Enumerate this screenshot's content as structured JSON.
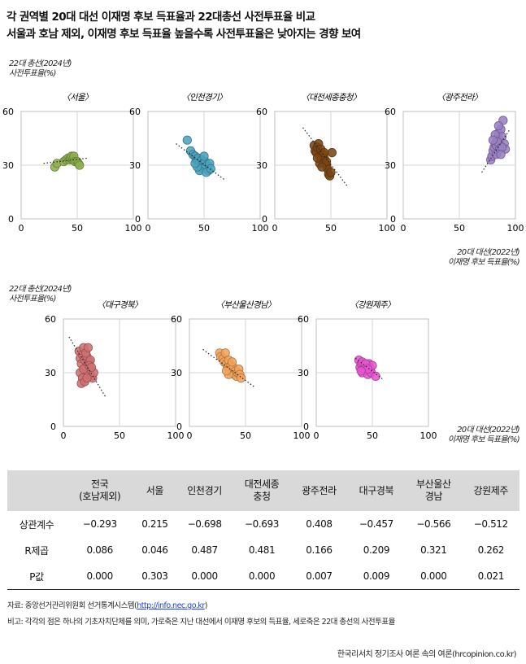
{
  "header": {
    "title_line1": "각 권역별 20대 대선 이재명 후보 득표율과 22대총선 사전투표율 비교",
    "title_line2": "서울과 호남 제외, 이재명 후보 득표율 높을수록 사전투표율은 낮아지는 경향 보여"
  },
  "axis_labels": {
    "y_line1": "22대 총선(2024년)",
    "y_line2": "사전투표율(%)",
    "x_line1": "20대 대선(2022년)",
    "x_line2": "이재명 후보 득표율(%)"
  },
  "colors": {
    "서울": "#8db04d",
    "인천경기": "#4ba3bf",
    "대전세종충청": "#7a4515",
    "광주전라": "#9a7fc4",
    "대구경북": "#cf6f72",
    "부산울산경남": "#f2a35a",
    "강원제주": "#e655cf"
  },
  "chart_data": [
    {
      "type": "scatter",
      "title": "〈서울〉",
      "region": "서울",
      "xlim": [
        0,
        100
      ],
      "ylim": [
        0,
        60
      ],
      "xticks": [
        0,
        50,
        100
      ],
      "yticks": [
        0,
        30,
        60
      ],
      "trend": {
        "x1": 20,
        "y1": 31,
        "x2": 60,
        "y2": 34
      },
      "points": [
        [
          30,
          29
        ],
        [
          32,
          31
        ],
        [
          38,
          32
        ],
        [
          40,
          33
        ],
        [
          42,
          34
        ],
        [
          43,
          33
        ],
        [
          44,
          34
        ],
        [
          45,
          35
        ],
        [
          46,
          33
        ],
        [
          47,
          35
        ],
        [
          48,
          32
        ],
        [
          50,
          32
        ],
        [
          51,
          31
        ],
        [
          52,
          30
        ]
      ]
    },
    {
      "type": "scatter",
      "title": "〈인천경기〉",
      "region": "인천경기",
      "xlim": [
        0,
        100
      ],
      "ylim": [
        0,
        60
      ],
      "xticks": [
        0,
        50,
        100
      ],
      "yticks": [
        0,
        30,
        60
      ],
      "trend": {
        "x1": 25,
        "y1": 42,
        "x2": 68,
        "y2": 22
      },
      "points": [
        [
          35,
          44
        ],
        [
          38,
          38
        ],
        [
          40,
          36
        ],
        [
          42,
          35
        ],
        [
          43,
          33
        ],
        [
          44,
          33
        ],
        [
          45,
          34
        ],
        [
          46,
          31
        ],
        [
          47,
          30
        ],
        [
          48,
          33
        ],
        [
          49,
          31
        ],
        [
          50,
          28
        ],
        [
          51,
          32
        ],
        [
          52,
          29
        ],
        [
          53,
          30
        ],
        [
          54,
          27
        ],
        [
          55,
          31
        ],
        [
          50,
          35
        ],
        [
          48,
          28
        ],
        [
          46,
          27
        ],
        [
          52,
          26
        ],
        [
          56,
          28
        ],
        [
          44,
          29
        ],
        [
          42,
          31
        ]
      ]
    },
    {
      "type": "scatter",
      "title": "〈대전세종충청〉",
      "region": "대전세종충청",
      "xlim": [
        0,
        100
      ],
      "ylim": [
        0,
        60
      ],
      "xticks": [
        0,
        50,
        100
      ],
      "yticks": [
        0,
        30,
        60
      ],
      "trend": {
        "x1": 25,
        "y1": 51,
        "x2": 65,
        "y2": 18
      },
      "points": [
        [
          35,
          41
        ],
        [
          36,
          38
        ],
        [
          37,
          37
        ],
        [
          38,
          40
        ],
        [
          39,
          42
        ],
        [
          40,
          35
        ],
        [
          41,
          39
        ],
        [
          42,
          33
        ],
        [
          43,
          36
        ],
        [
          44,
          34
        ],
        [
          45,
          31
        ],
        [
          46,
          30
        ],
        [
          47,
          28
        ],
        [
          48,
          25
        ],
        [
          49,
          24
        ],
        [
          50,
          26
        ],
        [
          51,
          37
        ],
        [
          40,
          31
        ],
        [
          44,
          37
        ],
        [
          46,
          32
        ],
        [
          38,
          34
        ],
        [
          42,
          29
        ]
      ]
    },
    {
      "type": "scatter",
      "title": "〈광주전라〉",
      "region": "광주전라",
      "xlim": [
        0,
        100
      ],
      "ylim": [
        0,
        60
      ],
      "xticks": [
        0,
        50,
        100
      ],
      "yticks": [
        0,
        30,
        60
      ],
      "trend": {
        "x1": 70,
        "y1": 26,
        "x2": 95,
        "y2": 50
      },
      "points": [
        [
          78,
          33
        ],
        [
          79,
          35
        ],
        [
          80,
          38
        ],
        [
          81,
          40
        ],
        [
          82,
          42
        ],
        [
          83,
          41
        ],
        [
          84,
          45
        ],
        [
          85,
          48
        ],
        [
          86,
          44
        ],
        [
          87,
          50
        ],
        [
          88,
          46
        ],
        [
          89,
          55
        ],
        [
          90,
          42
        ],
        [
          91,
          39
        ],
        [
          85,
          52
        ],
        [
          83,
          36
        ],
        [
          82,
          47
        ],
        [
          84,
          43
        ],
        [
          86,
          39
        ],
        [
          88,
          40
        ],
        [
          87,
          36
        ],
        [
          80,
          44
        ]
      ]
    },
    {
      "type": "scatter",
      "title": "〈대구경북〉",
      "region": "대구경북",
      "xlim": [
        0,
        100
      ],
      "ylim": [
        0,
        60
      ],
      "xticks": [
        0,
        50,
        100
      ],
      "yticks": [
        0,
        30,
        60
      ],
      "trend": {
        "x1": 5,
        "y1": 50,
        "x2": 38,
        "y2": 16
      },
      "points": [
        [
          14,
          42
        ],
        [
          15,
          38
        ],
        [
          16,
          35
        ],
        [
          17,
          40
        ],
        [
          18,
          44
        ],
        [
          19,
          37
        ],
        [
          20,
          33
        ],
        [
          21,
          39
        ],
        [
          22,
          30
        ],
        [
          23,
          36
        ],
        [
          24,
          32
        ],
        [
          25,
          28
        ],
        [
          26,
          27
        ],
        [
          27,
          30
        ],
        [
          15,
          30
        ],
        [
          17,
          27
        ],
        [
          18,
          32
        ],
        [
          20,
          41
        ],
        [
          22,
          44
        ],
        [
          24,
          37
        ],
        [
          16,
          24
        ],
        [
          19,
          25
        ],
        [
          21,
          27
        ],
        [
          23,
          34
        ],
        [
          25,
          33
        ]
      ]
    },
    {
      "type": "scatter",
      "title": "〈부산울산경남〉",
      "region": "부산울산경남",
      "xlim": [
        0,
        100
      ],
      "ylim": [
        0,
        60
      ],
      "xticks": [
        0,
        50,
        100
      ],
      "yticks": [
        0,
        30,
        60
      ],
      "trend": {
        "x1": 12,
        "y1": 43,
        "x2": 58,
        "y2": 22
      },
      "points": [
        [
          27,
          41
        ],
        [
          28,
          39
        ],
        [
          30,
          38
        ],
        [
          31,
          36
        ],
        [
          32,
          41
        ],
        [
          33,
          35
        ],
        [
          34,
          33
        ],
        [
          35,
          37
        ],
        [
          36,
          32
        ],
        [
          37,
          34
        ],
        [
          38,
          30
        ],
        [
          39,
          33
        ],
        [
          40,
          29
        ],
        [
          41,
          31
        ],
        [
          42,
          28
        ],
        [
          43,
          30
        ],
        [
          44,
          32
        ],
        [
          45,
          29
        ],
        [
          46,
          27
        ],
        [
          35,
          29
        ],
        [
          33,
          31
        ],
        [
          38,
          36
        ]
      ]
    },
    {
      "type": "scatter",
      "title": "〈강원제주〉",
      "region": "강원제주",
      "xlim": [
        0,
        100
      ],
      "ylim": [
        0,
        60
      ],
      "xticks": [
        0,
        50,
        100
      ],
      "yticks": [
        0,
        30,
        60
      ],
      "trend": {
        "x1": 35,
        "y1": 38,
        "x2": 60,
        "y2": 26
      },
      "points": [
        [
          38,
          37
        ],
        [
          39,
          33
        ],
        [
          40,
          35
        ],
        [
          41,
          30
        ],
        [
          42,
          32
        ],
        [
          43,
          34
        ],
        [
          44,
          31
        ],
        [
          45,
          33
        ],
        [
          46,
          29
        ],
        [
          47,
          35
        ],
        [
          48,
          32
        ],
        [
          49,
          30
        ],
        [
          50,
          34
        ],
        [
          53,
          28
        ],
        [
          41,
          36
        ],
        [
          44,
          35
        ],
        [
          46,
          32
        ],
        [
          40,
          31
        ]
      ]
    }
  ],
  "stats_table": {
    "corner": "",
    "columns": [
      "전국\n(호남제외)",
      "서울",
      "인천경기",
      "대전세종\n충청",
      "광주전라",
      "대구경북",
      "부산울산\n경남",
      "강원제주"
    ],
    "rows": [
      {
        "label": "상관계수",
        "values": [
          "−0.293",
          "0.215",
          "−0.698",
          "−0.693",
          "0.408",
          "−0.457",
          "−0.566",
          "−0.512"
        ]
      },
      {
        "label": "R제곱",
        "values": [
          "0.086",
          "0.046",
          "0.487",
          "0.481",
          "0.166",
          "0.209",
          "0.321",
          "0.262"
        ]
      },
      {
        "label": "P값",
        "values": [
          "0.000",
          "0.303",
          "0.000",
          "0.000",
          "0.007",
          "0.009",
          "0.000",
          "0.021"
        ]
      }
    ]
  },
  "footer": {
    "source_prefix": "자료: 중앙선거관리위원회 선거통계시스템(",
    "source_link": "http://info.nec.go.kr",
    "source_suffix": ")",
    "note": "비고: 각각의 점은 하나의 기초자치단체를 의미, 가로축은 지난 대선에서 이재명 후보의 득표율, 세로축은 22대 총선의 사전투표율",
    "credit": "한국리서치 정기조사 여론 속의 여론(hrcopinion.co.kr)"
  }
}
